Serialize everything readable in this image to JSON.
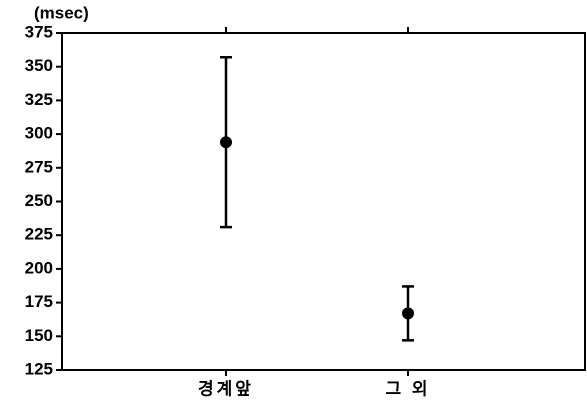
{
  "chart_data": {
    "type": "errorbar",
    "y_unit_label": "(msec)",
    "categories": [
      "경계앞",
      "그 외"
    ],
    "values": [
      294,
      167
    ],
    "errors": [
      63,
      20
    ],
    "color": "#000000",
    "ylim": [
      125,
      375
    ],
    "yticks": [
      125,
      150,
      175,
      200,
      225,
      250,
      275,
      300,
      325,
      350,
      375
    ]
  }
}
